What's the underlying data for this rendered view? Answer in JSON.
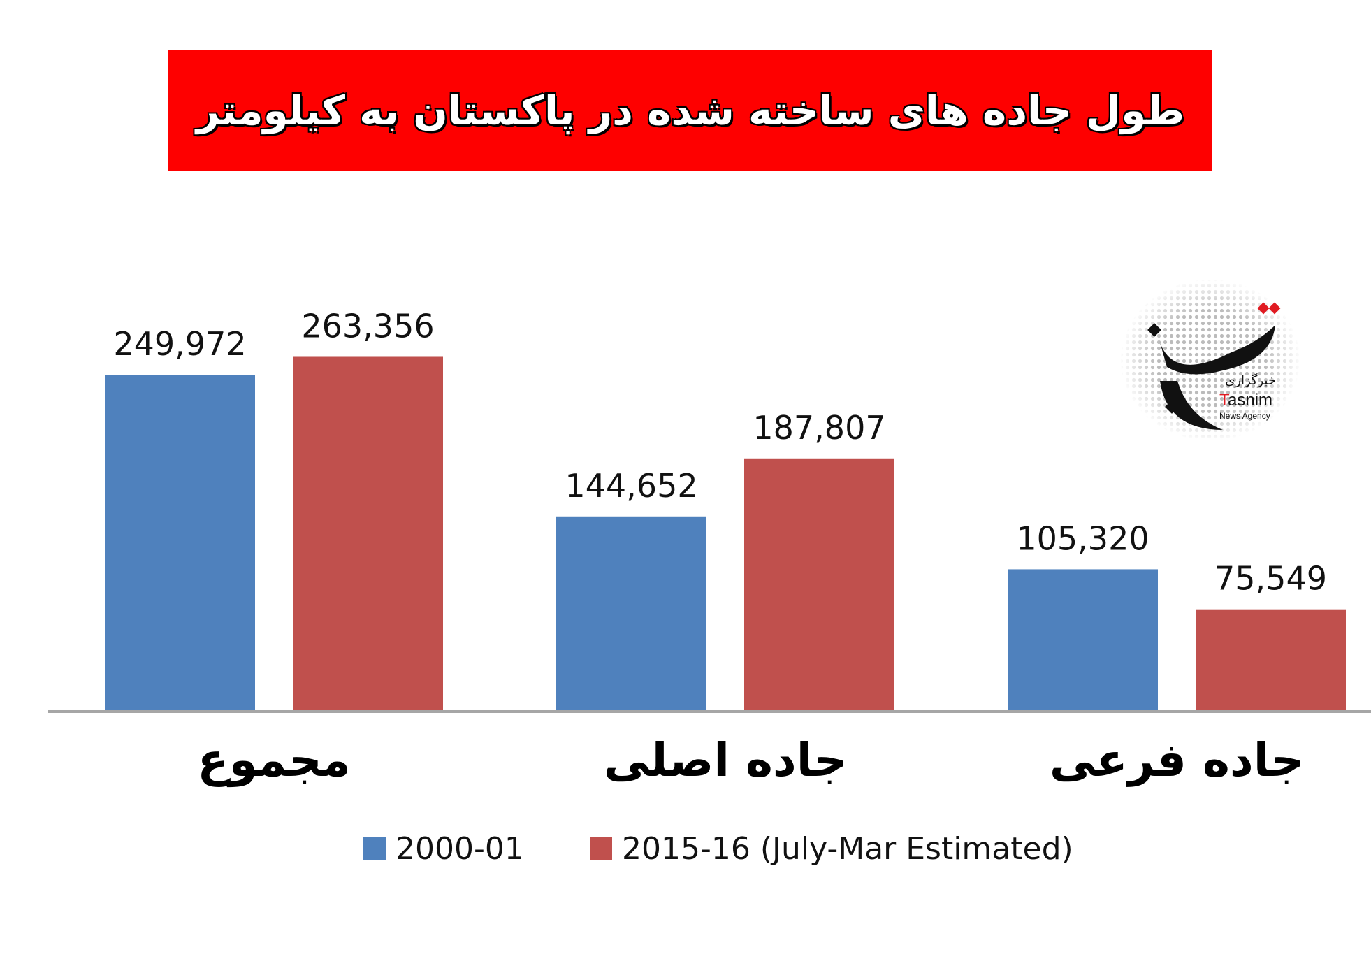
{
  "chart_data": {
    "type": "bar",
    "title": "طول جاده های ساخته شده در پاکستان به کیلومتر",
    "categories": [
      "مجموع",
      "جاده اصلی",
      "جاده فرعی"
    ],
    "series": [
      {
        "name": "2000-01",
        "color": "#4f81bd",
        "values": [
          249972,
          144652,
          105320
        ],
        "labels": [
          "249,972",
          "144,652",
          "105,320"
        ]
      },
      {
        "name": "2015-16 (July-Mar Estimated)",
        "color": "#c0504d",
        "values": [
          263356,
          187807,
          75549
        ],
        "labels": [
          "263,356",
          "187,807",
          "75,549"
        ]
      }
    ],
    "ylim": [
      0,
      300000
    ],
    "grid": false,
    "legend": "bottom",
    "xlabel": "",
    "ylabel": ""
  },
  "banner": {
    "color": "#fe0000"
  },
  "logo": {
    "persian": "خبرگزاری",
    "name": "Tasnim",
    "sub": "News Agency"
  }
}
